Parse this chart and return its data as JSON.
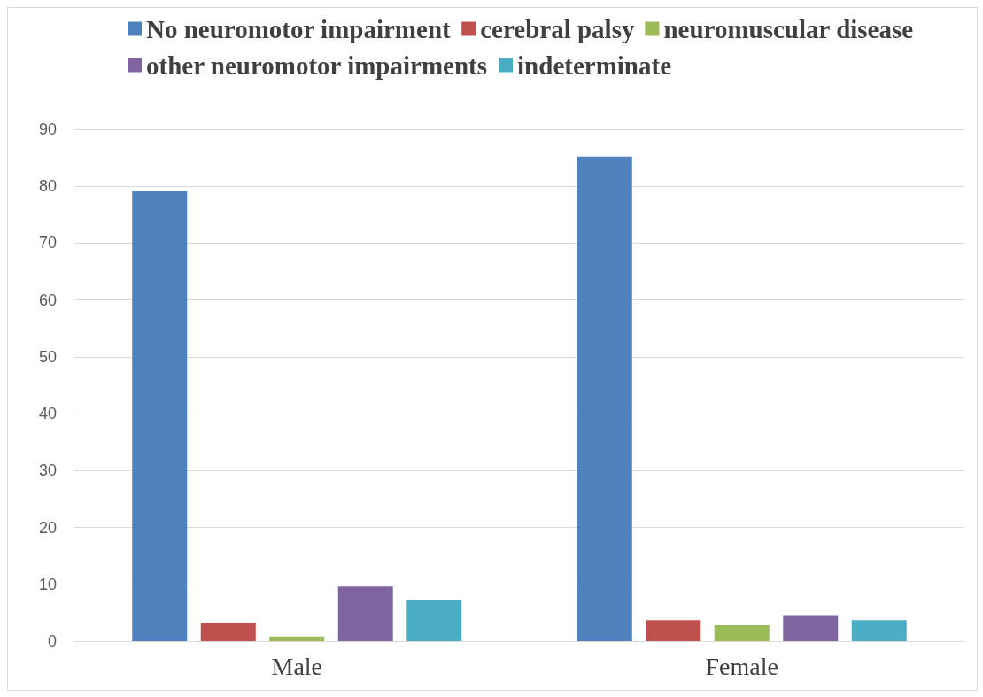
{
  "chart_data": {
    "type": "bar",
    "categories": [
      "Male",
      "Female"
    ],
    "series": [
      {
        "name": "No neuromotor impairment",
        "color": "#4f81bd",
        "values": [
          79.1,
          85.2
        ]
      },
      {
        "name": "cerebral palsy",
        "color": "#c0504d",
        "values": [
          3.2,
          3.7
        ]
      },
      {
        "name": "neuromuscular disease",
        "color": "#9bbb59",
        "values": [
          0.8,
          2.8
        ]
      },
      {
        "name": "other neuromotor impairments",
        "color": "#8064a2",
        "values": [
          9.6,
          4.6
        ]
      },
      {
        "name": "indeterminate",
        "color": "#4bacc6",
        "values": [
          7.2,
          3.7
        ]
      }
    ],
    "ylim": [
      0,
      90
    ],
    "yticks": [
      0,
      10,
      20,
      30,
      40,
      50,
      60,
      70,
      80,
      90
    ],
    "grid": "y",
    "legend": "top"
  }
}
